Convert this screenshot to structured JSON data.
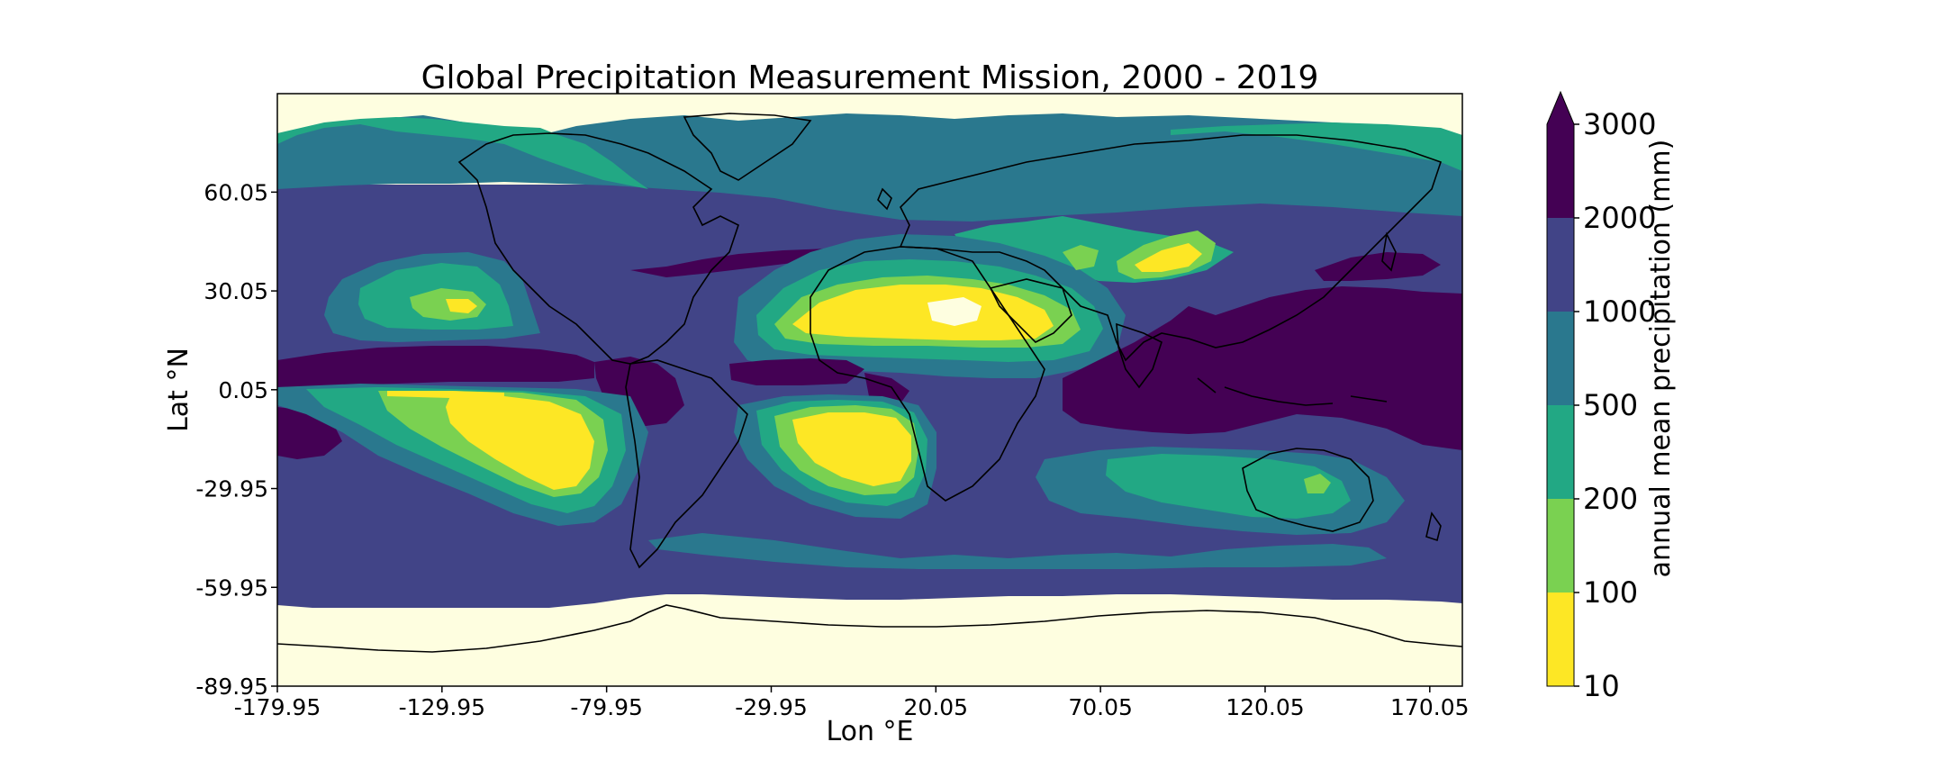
{
  "title": "Global Precipitation Measurement Mission, 2000 - 2019",
  "map": {
    "xlabel": "Lon $^\\circ$E",
    "xlabel_text": "Lon °E",
    "ylabel_text": "Lat °N",
    "lon_range": [
      -179.95,
      179.95
    ],
    "lat_range": [
      -89.95,
      89.95
    ],
    "x_ticks": [
      "-179.95",
      "-129.95",
      "-79.95",
      "-29.95",
      "20.05",
      "70.05",
      "120.05",
      "170.05"
    ],
    "y_ticks": [
      "60.05",
      "30.05",
      "0.05",
      "-29.95",
      "-59.95",
      "-89.95"
    ],
    "no_data_color": "#fefee0",
    "coastline_color": "#000000"
  },
  "colorbar": {
    "label": "annual mean precipitation (mm)",
    "levels": [
      "10",
      "100",
      "200",
      "500",
      "1000",
      "2000",
      "3000"
    ],
    "colors": [
      "#fde725",
      "#7ad151",
      "#22a884",
      "#2a788e",
      "#414487",
      "#440154"
    ],
    "extend": "max",
    "colormap": "viridis"
  }
}
